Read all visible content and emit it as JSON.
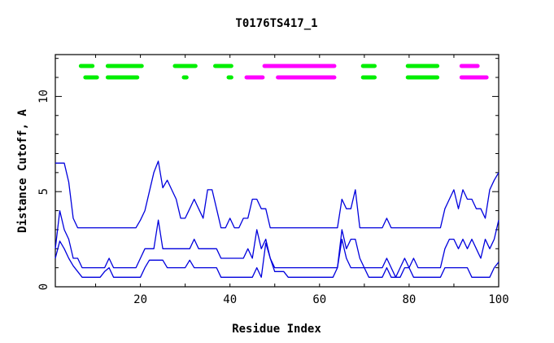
{
  "chart_data": {
    "type": "line",
    "title": "T0176TS417_1",
    "xlabel": "Residue Index",
    "ylabel": "Distance Cutoff, A",
    "xlim": [
      1,
      100
    ],
    "ylim": [
      0,
      12.2
    ],
    "x_ticks": [
      20,
      40,
      60,
      80,
      100
    ],
    "y_ticks": [
      0,
      5,
      10
    ],
    "line_color": "#0000dd",
    "series": [
      {
        "points": [
          [
            1,
            6.5
          ],
          [
            2,
            6.5
          ],
          [
            3,
            6.5
          ],
          [
            4,
            5.5
          ],
          [
            5,
            3.6
          ],
          [
            6,
            3.1
          ],
          [
            7,
            3.1
          ],
          [
            8,
            3.1
          ],
          [
            9,
            3.1
          ],
          [
            10,
            3.1
          ],
          [
            11,
            3.1
          ],
          [
            12,
            3.1
          ],
          [
            13,
            3.1
          ],
          [
            14,
            3.1
          ],
          [
            15,
            3.1
          ],
          [
            16,
            3.1
          ],
          [
            17,
            3.1
          ],
          [
            18,
            3.1
          ],
          [
            19,
            3.1
          ],
          [
            20,
            3.5
          ],
          [
            21,
            4.0
          ],
          [
            22,
            5.0
          ],
          [
            23,
            6.0
          ],
          [
            24,
            6.6
          ],
          [
            25,
            5.2
          ],
          [
            26,
            5.6
          ],
          [
            27,
            5.1
          ],
          [
            28,
            4.6
          ],
          [
            29,
            3.6
          ],
          [
            30,
            3.6
          ],
          [
            31,
            4.1
          ],
          [
            32,
            4.6
          ],
          [
            33,
            4.1
          ],
          [
            34,
            3.6
          ],
          [
            35,
            5.1
          ],
          [
            36,
            5.1
          ],
          [
            37,
            4.1
          ],
          [
            38,
            3.1
          ],
          [
            39,
            3.1
          ],
          [
            40,
            3.6
          ],
          [
            41,
            3.1
          ],
          [
            42,
            3.1
          ],
          [
            43,
            3.6
          ],
          [
            44,
            3.6
          ],
          [
            45,
            4.6
          ],
          [
            46,
            4.6
          ],
          [
            47,
            4.1
          ],
          [
            48,
            4.1
          ],
          [
            49,
            3.1
          ],
          [
            50,
            3.1
          ],
          [
            51,
            3.1
          ],
          [
            52,
            3.1
          ],
          [
            53,
            3.1
          ],
          [
            54,
            3.1
          ],
          [
            55,
            3.1
          ],
          [
            56,
            3.1
          ],
          [
            57,
            3.1
          ],
          [
            58,
            3.1
          ],
          [
            59,
            3.1
          ],
          [
            60,
            3.1
          ],
          [
            61,
            3.1
          ],
          [
            62,
            3.1
          ],
          [
            63,
            3.1
          ],
          [
            64,
            3.1
          ],
          [
            65,
            4.6
          ],
          [
            66,
            4.1
          ],
          [
            67,
            4.1
          ],
          [
            68,
            5.1
          ],
          [
            69,
            3.1
          ],
          [
            70,
            3.1
          ],
          [
            71,
            3.1
          ],
          [
            72,
            3.1
          ],
          [
            73,
            3.1
          ],
          [
            74,
            3.1
          ],
          [
            75,
            3.6
          ],
          [
            76,
            3.1
          ],
          [
            77,
            3.1
          ],
          [
            78,
            3.1
          ],
          [
            79,
            3.1
          ],
          [
            80,
            3.1
          ],
          [
            81,
            3.1
          ],
          [
            82,
            3.1
          ],
          [
            83,
            3.1
          ],
          [
            84,
            3.1
          ],
          [
            85,
            3.1
          ],
          [
            86,
            3.1
          ],
          [
            87,
            3.1
          ],
          [
            88,
            4.1
          ],
          [
            89,
            4.6
          ],
          [
            90,
            5.1
          ],
          [
            91,
            4.1
          ],
          [
            92,
            5.1
          ],
          [
            93,
            4.6
          ],
          [
            94,
            4.6
          ],
          [
            95,
            4.1
          ],
          [
            96,
            4.1
          ],
          [
            97,
            3.6
          ],
          [
            98,
            5.1
          ],
          [
            99,
            5.6
          ],
          [
            100,
            6.0
          ]
        ]
      },
      {
        "points": [
          [
            1,
            2.0
          ],
          [
            2,
            4.0
          ],
          [
            3,
            3.0
          ],
          [
            4,
            2.5
          ],
          [
            5,
            1.5
          ],
          [
            6,
            1.5
          ],
          [
            7,
            1.0
          ],
          [
            8,
            1.0
          ],
          [
            9,
            1.0
          ],
          [
            10,
            1.0
          ],
          [
            11,
            1.0
          ],
          [
            12,
            1.0
          ],
          [
            13,
            1.5
          ],
          [
            14,
            1.0
          ],
          [
            15,
            1.0
          ],
          [
            16,
            1.0
          ],
          [
            17,
            1.0
          ],
          [
            18,
            1.0
          ],
          [
            19,
            1.0
          ],
          [
            20,
            1.5
          ],
          [
            21,
            2.0
          ],
          [
            22,
            2.0
          ],
          [
            23,
            2.0
          ],
          [
            24,
            3.5
          ],
          [
            25,
            2.0
          ],
          [
            26,
            2.0
          ],
          [
            27,
            2.0
          ],
          [
            28,
            2.0
          ],
          [
            29,
            2.0
          ],
          [
            30,
            2.0
          ],
          [
            31,
            2.0
          ],
          [
            32,
            2.5
          ],
          [
            33,
            2.0
          ],
          [
            34,
            2.0
          ],
          [
            35,
            2.0
          ],
          [
            36,
            2.0
          ],
          [
            37,
            2.0
          ],
          [
            38,
            1.5
          ],
          [
            39,
            1.5
          ],
          [
            40,
            1.5
          ],
          [
            41,
            1.5
          ],
          [
            42,
            1.5
          ],
          [
            43,
            1.5
          ],
          [
            44,
            2.0
          ],
          [
            45,
            1.5
          ],
          [
            46,
            3.0
          ],
          [
            47,
            2.0
          ],
          [
            48,
            2.5
          ],
          [
            49,
            1.5
          ],
          [
            50,
            1.0
          ],
          [
            51,
            1.0
          ],
          [
            52,
            1.0
          ],
          [
            53,
            1.0
          ],
          [
            54,
            1.0
          ],
          [
            55,
            1.0
          ],
          [
            56,
            1.0
          ],
          [
            57,
            1.0
          ],
          [
            58,
            1.0
          ],
          [
            59,
            1.0
          ],
          [
            60,
            1.0
          ],
          [
            61,
            1.0
          ],
          [
            62,
            1.0
          ],
          [
            63,
            1.0
          ],
          [
            64,
            1.0
          ],
          [
            65,
            3.0
          ],
          [
            66,
            2.0
          ],
          [
            67,
            2.5
          ],
          [
            68,
            2.5
          ],
          [
            69,
            1.5
          ],
          [
            70,
            1.0
          ],
          [
            71,
            1.0
          ],
          [
            72,
            1.0
          ],
          [
            73,
            1.0
          ],
          [
            74,
            1.0
          ],
          [
            75,
            1.5
          ],
          [
            76,
            1.0
          ],
          [
            77,
            0.5
          ],
          [
            78,
            1.0
          ],
          [
            79,
            1.5
          ],
          [
            80,
            1.0
          ],
          [
            81,
            1.5
          ],
          [
            82,
            1.0
          ],
          [
            83,
            1.0
          ],
          [
            84,
            1.0
          ],
          [
            85,
            1.0
          ],
          [
            86,
            1.0
          ],
          [
            87,
            1.0
          ],
          [
            88,
            2.0
          ],
          [
            89,
            2.5
          ],
          [
            90,
            2.5
          ],
          [
            91,
            2.0
          ],
          [
            92,
            2.5
          ],
          [
            93,
            2.0
          ],
          [
            94,
            2.5
          ],
          [
            95,
            2.0
          ],
          [
            96,
            1.5
          ],
          [
            97,
            2.5
          ],
          [
            98,
            2.0
          ],
          [
            99,
            2.5
          ],
          [
            100,
            3.5
          ]
        ]
      },
      {
        "points": [
          [
            1,
            1.5
          ],
          [
            2,
            2.4
          ],
          [
            3,
            2.0
          ],
          [
            4,
            1.5
          ],
          [
            5,
            1.1
          ],
          [
            6,
            0.8
          ],
          [
            7,
            0.5
          ],
          [
            8,
            0.5
          ],
          [
            9,
            0.5
          ],
          [
            10,
            0.5
          ],
          [
            11,
            0.5
          ],
          [
            12,
            0.8
          ],
          [
            13,
            1.0
          ],
          [
            14,
            0.5
          ],
          [
            15,
            0.5
          ],
          [
            16,
            0.5
          ],
          [
            17,
            0.5
          ],
          [
            18,
            0.5
          ],
          [
            19,
            0.5
          ],
          [
            20,
            0.5
          ],
          [
            21,
            1.0
          ],
          [
            22,
            1.4
          ],
          [
            23,
            1.4
          ],
          [
            24,
            1.4
          ],
          [
            25,
            1.4
          ],
          [
            26,
            1.0
          ],
          [
            27,
            1.0
          ],
          [
            28,
            1.0
          ],
          [
            29,
            1.0
          ],
          [
            30,
            1.0
          ],
          [
            31,
            1.4
          ],
          [
            32,
            1.0
          ],
          [
            33,
            1.0
          ],
          [
            34,
            1.0
          ],
          [
            35,
            1.0
          ],
          [
            36,
            1.0
          ],
          [
            37,
            1.0
          ],
          [
            38,
            0.5
          ],
          [
            39,
            0.5
          ],
          [
            40,
            0.5
          ],
          [
            41,
            0.5
          ],
          [
            42,
            0.5
          ],
          [
            43,
            0.5
          ],
          [
            44,
            0.5
          ],
          [
            45,
            0.5
          ],
          [
            46,
            1.0
          ],
          [
            47,
            0.5
          ],
          [
            48,
            2.3
          ],
          [
            49,
            1.5
          ],
          [
            50,
            0.8
          ],
          [
            51,
            0.8
          ],
          [
            52,
            0.8
          ],
          [
            53,
            0.5
          ],
          [
            54,
            0.5
          ],
          [
            55,
            0.5
          ],
          [
            56,
            0.5
          ],
          [
            57,
            0.5
          ],
          [
            58,
            0.5
          ],
          [
            59,
            0.5
          ],
          [
            60,
            0.5
          ],
          [
            61,
            0.5
          ],
          [
            62,
            0.5
          ],
          [
            63,
            0.5
          ],
          [
            64,
            1.0
          ],
          [
            65,
            2.5
          ],
          [
            66,
            1.5
          ],
          [
            67,
            1.0
          ],
          [
            68,
            1.0
          ],
          [
            69,
            1.0
          ],
          [
            70,
            1.0
          ],
          [
            71,
            0.5
          ],
          [
            72,
            0.5
          ],
          [
            73,
            0.5
          ],
          [
            74,
            0.5
          ],
          [
            75,
            1.0
          ],
          [
            76,
            0.5
          ],
          [
            77,
            0.5
          ],
          [
            78,
            0.5
          ],
          [
            79,
            1.0
          ],
          [
            80,
            1.0
          ],
          [
            81,
            0.5
          ],
          [
            82,
            0.5
          ],
          [
            83,
            0.5
          ],
          [
            84,
            0.5
          ],
          [
            85,
            0.5
          ],
          [
            86,
            0.5
          ],
          [
            87,
            0.5
          ],
          [
            88,
            1.0
          ],
          [
            89,
            1.0
          ],
          [
            90,
            1.0
          ],
          [
            91,
            1.0
          ],
          [
            92,
            1.0
          ],
          [
            93,
            1.0
          ],
          [
            94,
            0.5
          ],
          [
            95,
            0.5
          ],
          [
            96,
            0.5
          ],
          [
            97,
            0.5
          ],
          [
            98,
            0.5
          ],
          [
            99,
            1.0
          ],
          [
            100,
            1.3
          ]
        ]
      }
    ],
    "secondary_structure": {
      "helix_color": "#ff00ff",
      "strand_color": "#00ee00",
      "rows": [
        {
          "y": 11.6,
          "segments": [
            {
              "type": "strand",
              "start": 7,
              "end": 9
            },
            {
              "type": "strand",
              "start": 13,
              "end": 20
            },
            {
              "type": "strand",
              "start": 28,
              "end": 32
            },
            {
              "type": "strand",
              "start": 37,
              "end": 40
            },
            {
              "type": "helix",
              "start": 48,
              "end": 63
            },
            {
              "type": "strand",
              "start": 70,
              "end": 72
            },
            {
              "type": "strand",
              "start": 80,
              "end": 86
            },
            {
              "type": "helix",
              "start": 92,
              "end": 95
            }
          ]
        },
        {
          "y": 11.0,
          "segments": [
            {
              "type": "strand",
              "start": 8,
              "end": 10
            },
            {
              "type": "strand",
              "start": 13,
              "end": 19
            },
            {
              "type": "strand",
              "start": 30,
              "end": 30
            },
            {
              "type": "strand",
              "start": 40,
              "end": 40
            },
            {
              "type": "helix",
              "start": 44,
              "end": 47
            },
            {
              "type": "helix",
              "start": 51,
              "end": 63
            },
            {
              "type": "strand",
              "start": 70,
              "end": 72
            },
            {
              "type": "strand",
              "start": 80,
              "end": 86
            },
            {
              "type": "helix",
              "start": 92,
              "end": 97
            }
          ]
        }
      ]
    }
  }
}
